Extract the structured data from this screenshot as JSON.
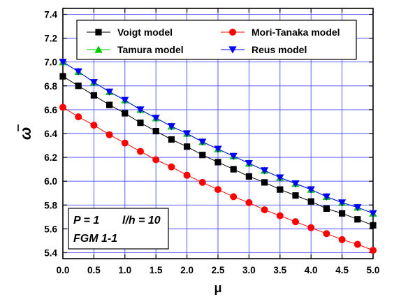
{
  "chart_data": {
    "type": "line",
    "xlabel": "μ",
    "ylabel": "ω",
    "xlim": [
      0.0,
      5.0
    ],
    "ylim": [
      5.35,
      7.45
    ],
    "xticks": [
      "0.0",
      "0.5",
      "1.0",
      "1.5",
      "2.0",
      "2.5",
      "3.0",
      "3.5",
      "4.0",
      "4.5",
      "5.0"
    ],
    "yticks": [
      "5.4",
      "5.6",
      "5.8",
      "6.0",
      "6.2",
      "6.4",
      "6.6",
      "6.8",
      "7.0",
      "7.2",
      "7.4"
    ],
    "grid": true,
    "legend_position": "top",
    "x": [
      0.0,
      0.25,
      0.5,
      0.75,
      1.0,
      1.25,
      1.5,
      1.75,
      2.0,
      2.25,
      2.5,
      2.75,
      3.0,
      3.25,
      3.5,
      3.75,
      4.0,
      4.25,
      4.5,
      4.75,
      5.0
    ],
    "series": [
      {
        "name": "Voigt model",
        "color": "#000000",
        "marker": "square",
        "values": [
          6.88,
          6.8,
          6.72,
          6.64,
          6.57,
          6.49,
          6.42,
          6.35,
          6.29,
          6.22,
          6.16,
          6.1,
          6.04,
          5.99,
          5.93,
          5.88,
          5.83,
          5.77,
          5.73,
          5.68,
          5.63
        ]
      },
      {
        "name": "Mori-Tanaka model",
        "color": "#ff0000",
        "marker": "circle",
        "values": [
          6.62,
          6.54,
          6.47,
          6.39,
          6.32,
          6.25,
          6.18,
          6.12,
          6.05,
          5.99,
          5.93,
          5.87,
          5.82,
          5.76,
          5.71,
          5.66,
          5.61,
          5.56,
          5.51,
          5.47,
          5.42
        ]
      },
      {
        "name": "Tamura model",
        "color": "#00cc00",
        "marker": "triangle-up",
        "values": [
          7.0,
          6.92,
          6.83,
          6.75,
          6.68,
          6.6,
          6.53,
          6.46,
          6.4,
          6.33,
          6.27,
          6.21,
          6.15,
          6.09,
          6.03,
          5.98,
          5.93,
          5.87,
          5.82,
          5.78,
          5.73
        ]
      },
      {
        "name": "Reus model",
        "color": "#0000ff",
        "marker": "triangle-down",
        "values": [
          7.0,
          6.92,
          6.83,
          6.75,
          6.68,
          6.6,
          6.53,
          6.46,
          6.4,
          6.33,
          6.27,
          6.21,
          6.15,
          6.09,
          6.03,
          5.98,
          5.93,
          5.87,
          5.82,
          5.78,
          5.73
        ]
      }
    ],
    "annotation": {
      "line1_p": "P = 1",
      "line1_lh": "l/h = 10",
      "line2": "FGM 1-1"
    }
  }
}
